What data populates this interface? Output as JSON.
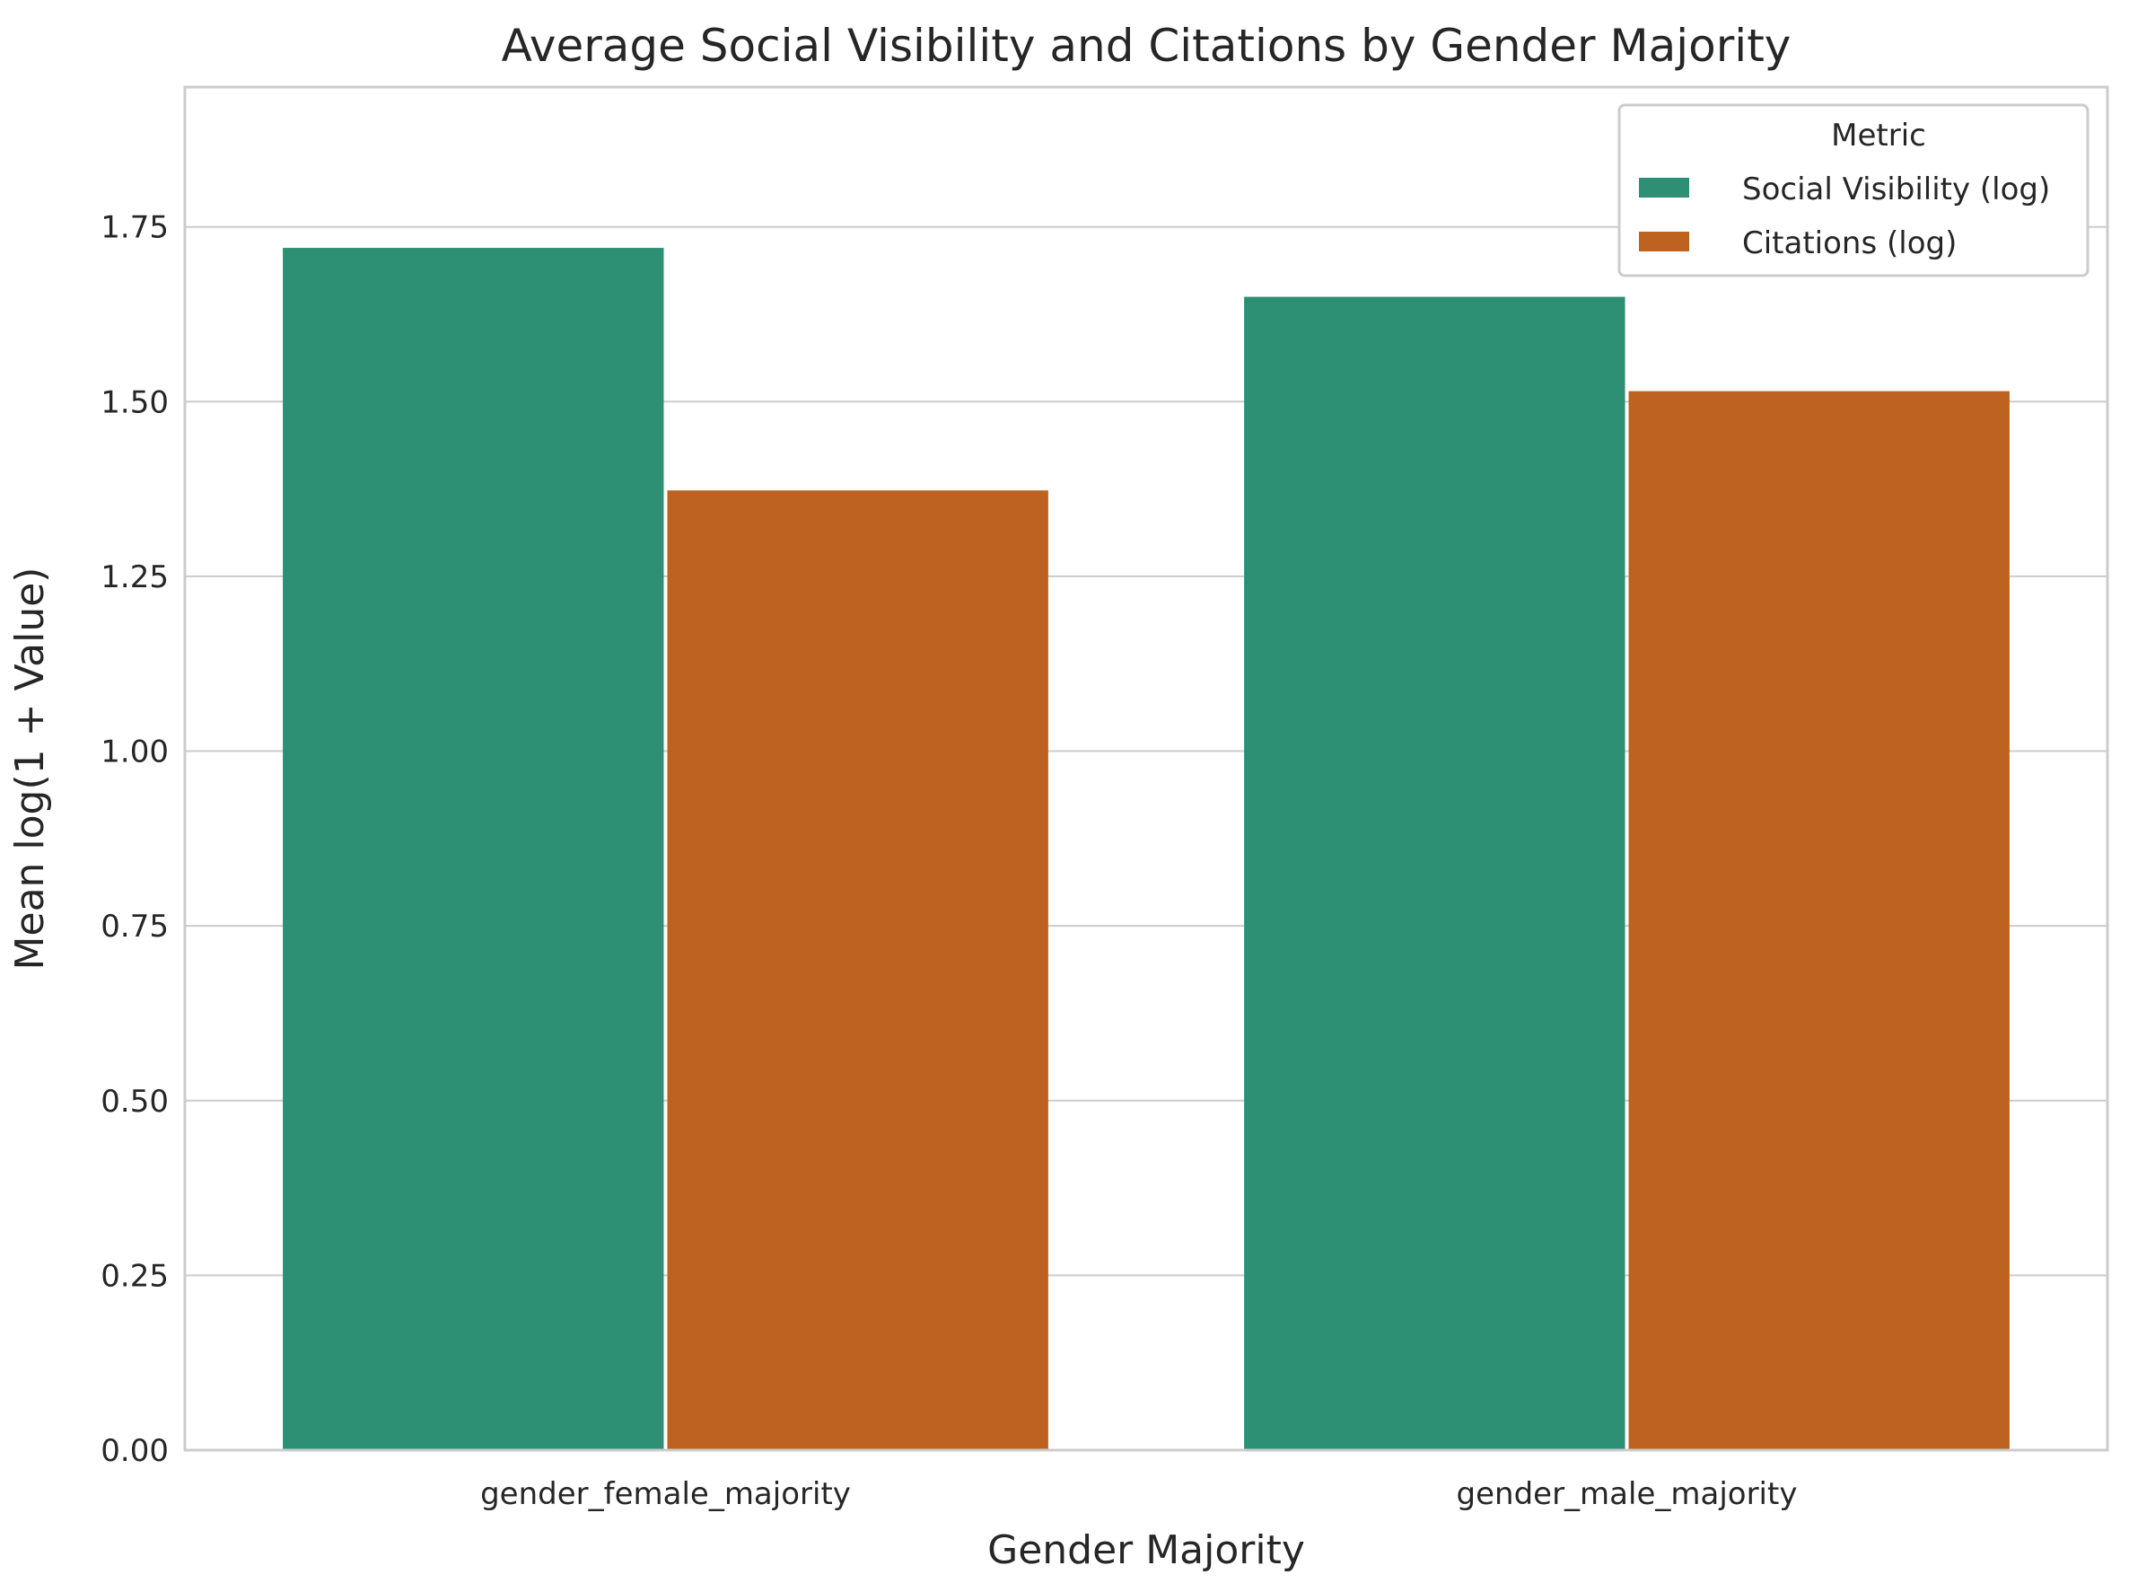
{
  "chart_data": {
    "type": "bar",
    "title": "Average Social Visibility and Citations by Gender Majority",
    "xlabel": "Gender Majority",
    "ylabel": "Mean log(1 + Value)",
    "categories": [
      "gender_female_majority",
      "gender_male_majority"
    ],
    "series": [
      {
        "name": "Social Visibility (log)",
        "color": "#2d8f73",
        "values": [
          1.72,
          1.65
        ]
      },
      {
        "name": "Citations (log)",
        "color": "#bd6220",
        "values": [
          1.373,
          1.515
        ]
      }
    ],
    "ylim": [
      0,
      1.95
    ],
    "yticks": [
      "0.00",
      "0.25",
      "0.50",
      "0.75",
      "1.00",
      "1.25",
      "1.50",
      "1.75"
    ],
    "grid": "horizontal",
    "legend": {
      "title": "Metric",
      "placement": "top-right"
    }
  }
}
